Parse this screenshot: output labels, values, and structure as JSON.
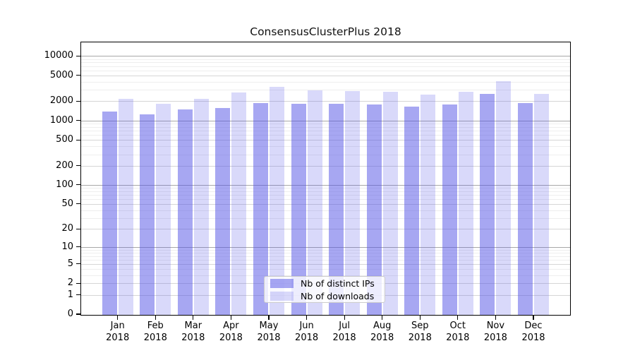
{
  "title": "ConsensusClusterPlus 2018",
  "chart_data": {
    "type": "bar",
    "title": "ConsensusClusterPlus 2018",
    "categories": [
      "Jan",
      "Feb",
      "Mar",
      "Apr",
      "May",
      "Jun",
      "Jul",
      "Aug",
      "Sep",
      "Oct",
      "Nov",
      "Dec"
    ],
    "year": "2018",
    "series": [
      {
        "name": "Nb of distinct IPs",
        "color": "rgba(80,80,230,0.5)",
        "values": [
          1390,
          1250,
          1490,
          1570,
          1870,
          1820,
          1800,
          1760,
          1650,
          1770,
          2570,
          1870
        ]
      },
      {
        "name": "Nb of downloads",
        "color": "rgba(80,80,230,0.22)",
        "values": [
          2190,
          1820,
          2190,
          2730,
          3300,
          2920,
          2900,
          2800,
          2530,
          2800,
          4100,
          2610
        ]
      }
    ],
    "xlabel": "",
    "ylabel": "",
    "y_scale": "log10(1+x)",
    "y_ticks": [
      0,
      1,
      2,
      5,
      10,
      20,
      50,
      100,
      200,
      500,
      1000,
      2000,
      5000,
      10000
    ],
    "ylim": [
      0,
      16700
    ],
    "grid": "on",
    "legend_position": "bottom-center",
    "colors": {
      "bar_dark": "rgba(80,80,230,0.5)",
      "bar_light": "rgba(80,80,230,0.22)",
      "grid_major": "#a8a8a8",
      "grid_mid": "#d6d6d6",
      "grid_minor": "#eeeeee",
      "axis": "#000000",
      "background": "#ffffff"
    }
  }
}
